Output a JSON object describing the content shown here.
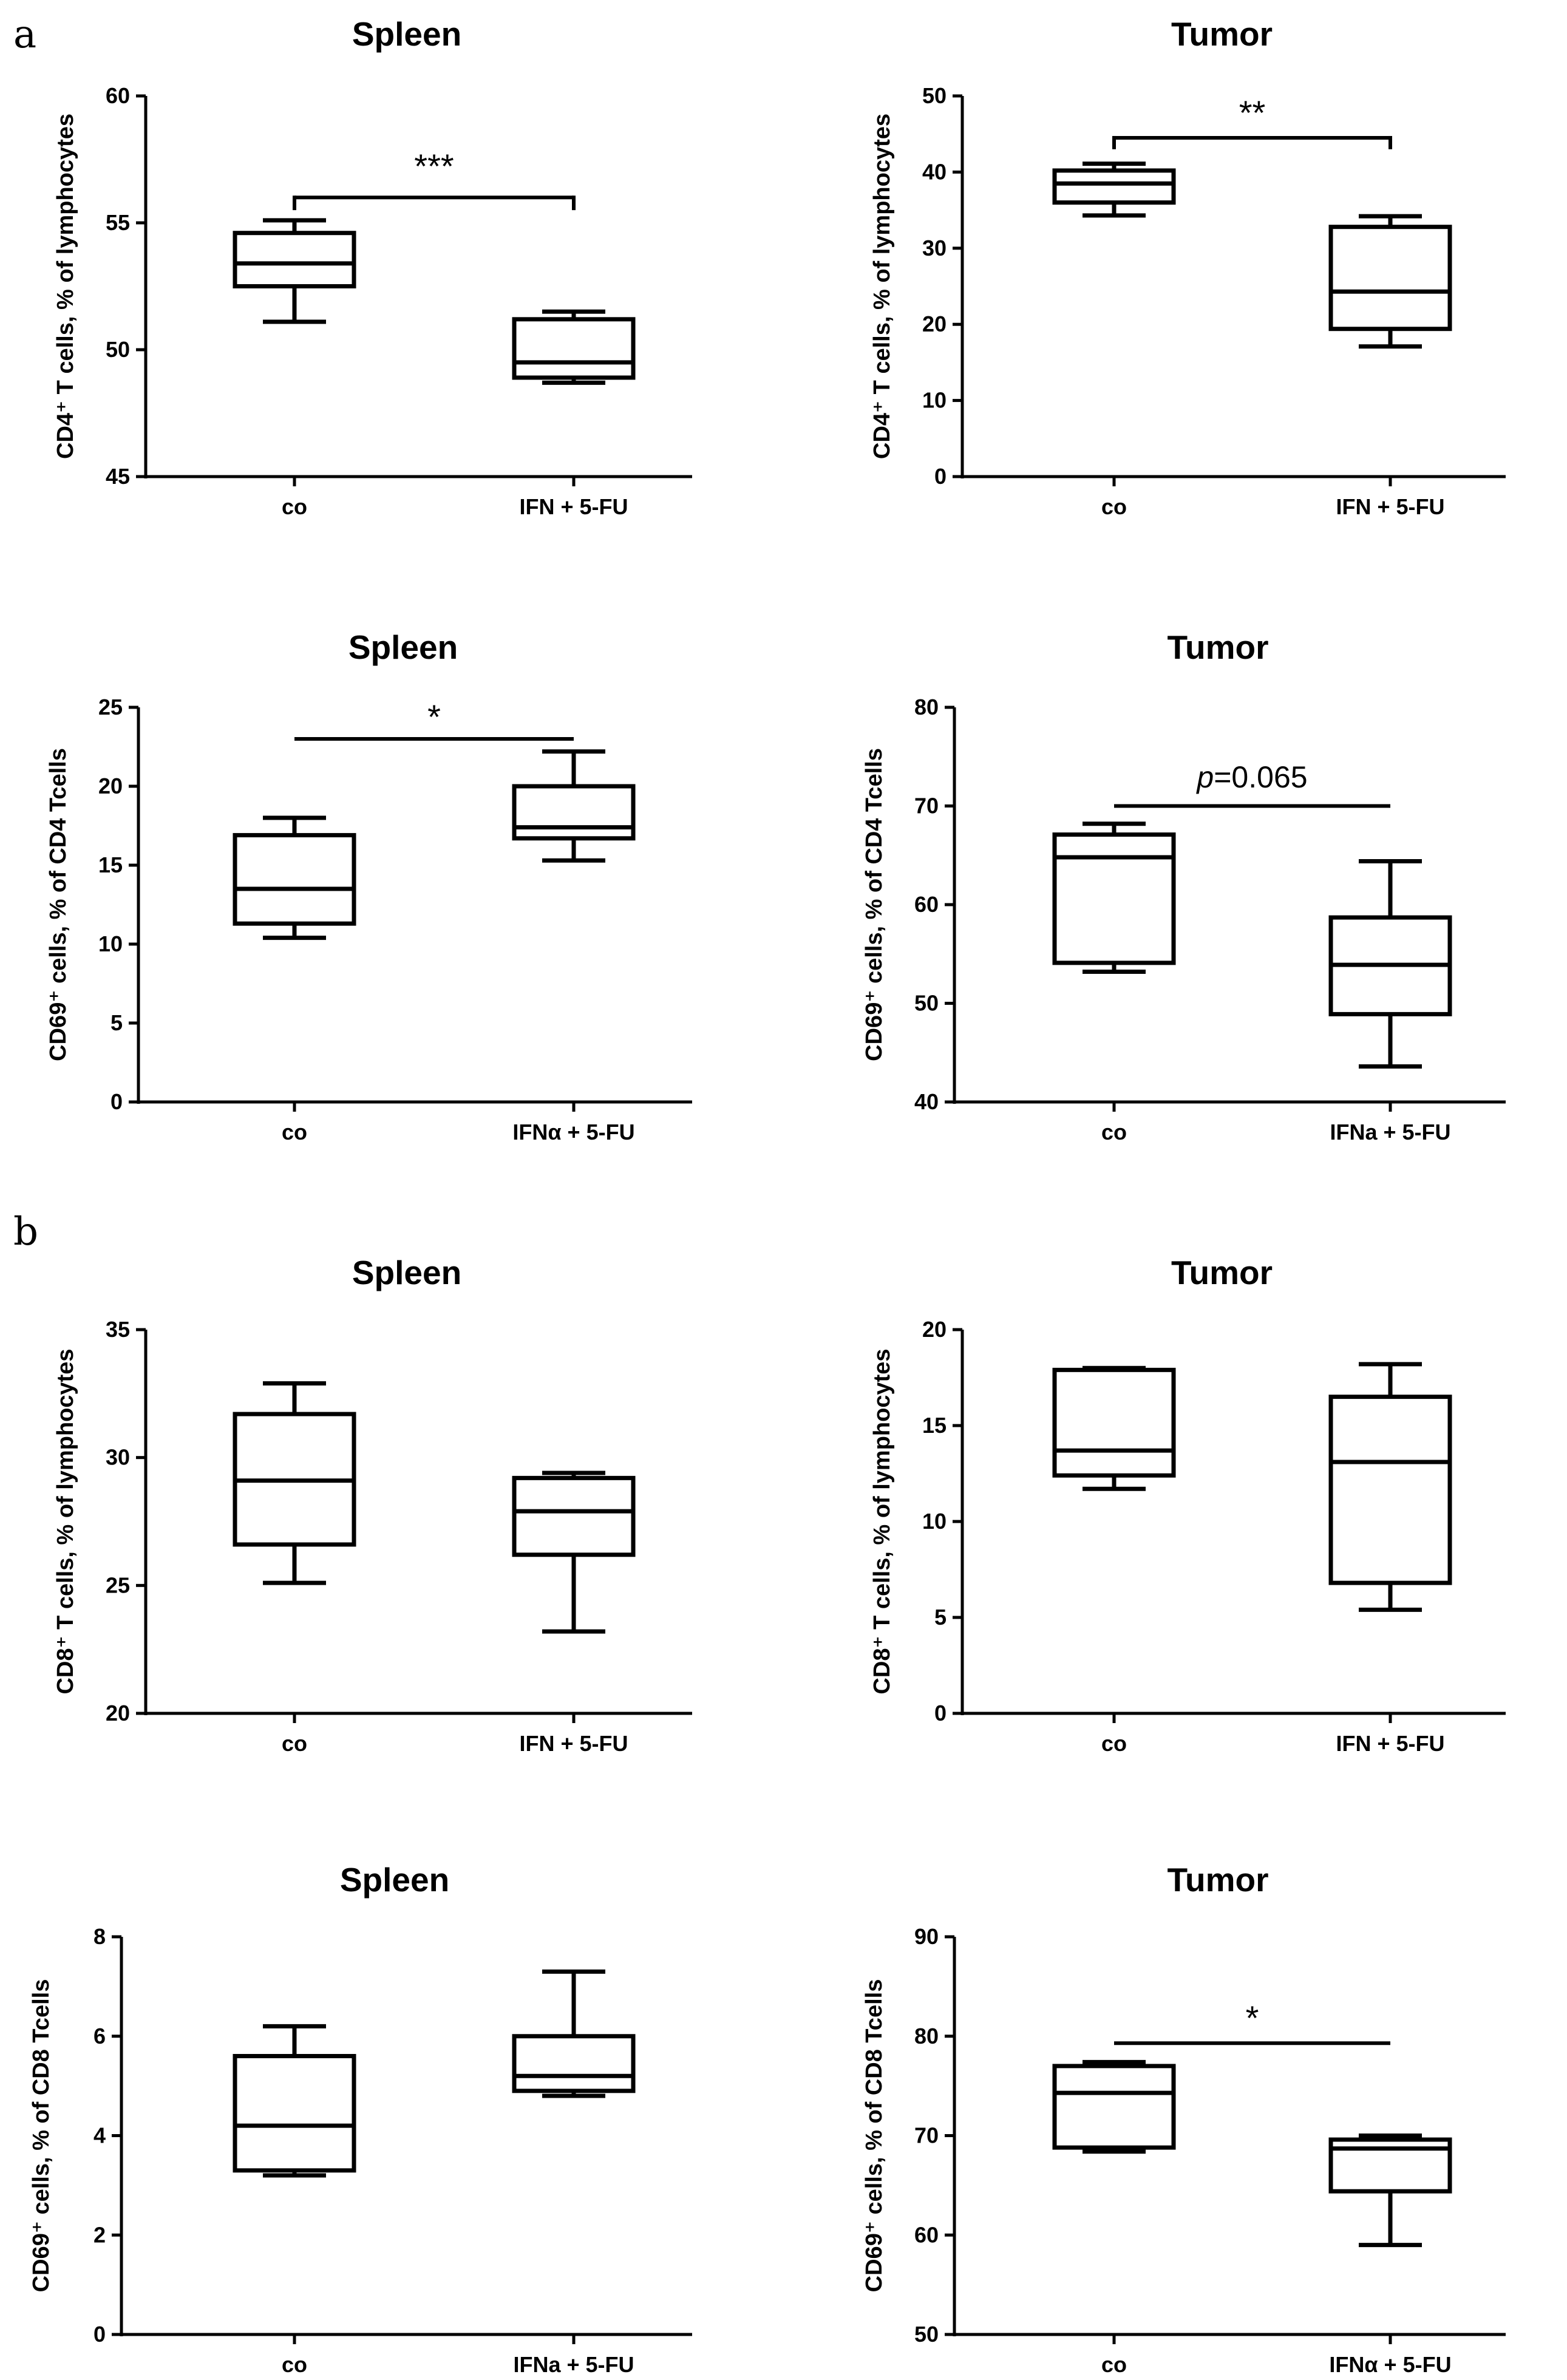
{
  "panel_labels": [
    "a",
    "b"
  ],
  "chart_data": [
    {
      "type": "boxplot",
      "panel": "a",
      "title": "Spleen",
      "ylabel": "CD4⁺ T cells, % of lymphocytes",
      "ylim": [
        45,
        60
      ],
      "yticks": [
        45,
        50,
        55,
        60
      ],
      "categories": [
        "co",
        "IFN + 5-FU"
      ],
      "boxes": [
        {
          "whisker_low": 51.1,
          "q1": 52.5,
          "median": 53.4,
          "q3": 54.6,
          "whisker_high": 55.1
        },
        {
          "whisker_low": 48.7,
          "q1": 48.9,
          "median": 49.5,
          "q3": 51.2,
          "whisker_high": 51.5
        }
      ],
      "significance": {
        "label": "***"
      }
    },
    {
      "type": "boxplot",
      "panel": "a",
      "title": "Tumor",
      "ylabel": "CD4⁺ T cells, % of lymphocytes",
      "ylim": [
        0,
        50
      ],
      "yticks": [
        0,
        10,
        20,
        30,
        40,
        50
      ],
      "categories": [
        "co",
        "IFN + 5-FU"
      ],
      "boxes": [
        {
          "whisker_low": 34.3,
          "q1": 36.0,
          "median": 38.5,
          "q3": 40.2,
          "whisker_high": 41.1
        },
        {
          "whisker_low": 17.1,
          "q1": 19.4,
          "median": 24.3,
          "q3": 32.8,
          "whisker_high": 34.2
        }
      ],
      "significance": {
        "label": "**"
      }
    },
    {
      "type": "boxplot",
      "panel": "a",
      "title": "Spleen",
      "ylabel": "CD69⁺ cells, % of CD4 Tcells",
      "ylim": [
        0,
        25
      ],
      "yticks": [
        0,
        5,
        10,
        15,
        20,
        25
      ],
      "categories": [
        "co",
        "IFNα  + 5-FU"
      ],
      "boxes": [
        {
          "whisker_low": 10.4,
          "q1": 11.3,
          "median": 13.5,
          "q3": 16.9,
          "whisker_high": 18.0
        },
        {
          "whisker_low": 15.3,
          "q1": 16.7,
          "median": 17.4,
          "q3": 20.0,
          "whisker_high": 22.2
        }
      ],
      "significance": {
        "label": "*"
      }
    },
    {
      "type": "boxplot",
      "panel": "a",
      "title": "Tumor",
      "ylabel": "CD69⁺ cells, % of CD4 Tcells",
      "ylim": [
        40,
        80
      ],
      "yticks": [
        40,
        50,
        60,
        70,
        80
      ],
      "categories": [
        "co",
        "IFNa + 5-FU"
      ],
      "boxes": [
        {
          "whisker_low": 53.2,
          "q1": 54.1,
          "median": 64.8,
          "q3": 67.1,
          "whisker_high": 68.2
        },
        {
          "whisker_low": 43.6,
          "q1": 48.9,
          "median": 53.9,
          "q3": 58.7,
          "whisker_high": 64.4
        }
      ],
      "significance": {
        "label": "p=0.065"
      }
    },
    {
      "type": "boxplot",
      "panel": "b",
      "title": "Spleen",
      "ylabel": "CD8⁺ T cells, % of lymphocytes",
      "ylim": [
        20,
        35
      ],
      "yticks": [
        20,
        25,
        30,
        35
      ],
      "categories": [
        "co",
        "IFN + 5-FU"
      ],
      "boxes": [
        {
          "whisker_low": 25.1,
          "q1": 26.6,
          "median": 29.1,
          "q3": 31.7,
          "whisker_high": 32.9
        },
        {
          "whisker_low": 23.2,
          "q1": 26.2,
          "median": 27.9,
          "q3": 29.2,
          "whisker_high": 29.4
        }
      ]
    },
    {
      "type": "boxplot",
      "panel": "b",
      "title": "Tumor",
      "ylabel": "CD8⁺ T cells, % of lymphocytes",
      "ylim": [
        0,
        20
      ],
      "yticks": [
        0,
        5,
        10,
        15,
        20
      ],
      "categories": [
        "co",
        "IFN + 5-FU"
      ],
      "boxes": [
        {
          "whisker_low": 11.7,
          "q1": 12.4,
          "median": 13.7,
          "q3": 17.9,
          "whisker_high": 18.0
        },
        {
          "whisker_low": 5.4,
          "q1": 6.8,
          "median": 13.1,
          "q3": 16.5,
          "whisker_high": 18.2
        }
      ]
    },
    {
      "type": "boxplot",
      "panel": "b",
      "title": "Spleen",
      "ylabel": "CD69⁺ cells, % of CD8 Tcells",
      "ylim": [
        0,
        8
      ],
      "yticks": [
        0,
        2,
        4,
        6,
        8
      ],
      "categories": [
        "co",
        "IFNa + 5-FU"
      ],
      "boxes": [
        {
          "whisker_low": 3.2,
          "q1": 3.3,
          "median": 4.2,
          "q3": 5.6,
          "whisker_high": 6.2
        },
        {
          "whisker_low": 4.8,
          "q1": 4.9,
          "median": 5.2,
          "q3": 6.0,
          "whisker_high": 7.3
        }
      ]
    },
    {
      "type": "boxplot",
      "panel": "b",
      "title": "Tumor",
      "ylabel": "CD69⁺ cells, % of CD8 Tcells",
      "ylim": [
        50,
        90
      ],
      "yticks": [
        50,
        60,
        70,
        80,
        90
      ],
      "categories": [
        "co",
        "IFNα  + 5-FU"
      ],
      "boxes": [
        {
          "whisker_low": 68.4,
          "q1": 68.8,
          "median": 74.3,
          "q3": 77.0,
          "whisker_high": 77.4
        },
        {
          "whisker_low": 59.0,
          "q1": 64.4,
          "median": 68.7,
          "q3": 69.6,
          "whisker_high": 70.0
        }
      ],
      "significance": {
        "label": "*"
      }
    }
  ]
}
